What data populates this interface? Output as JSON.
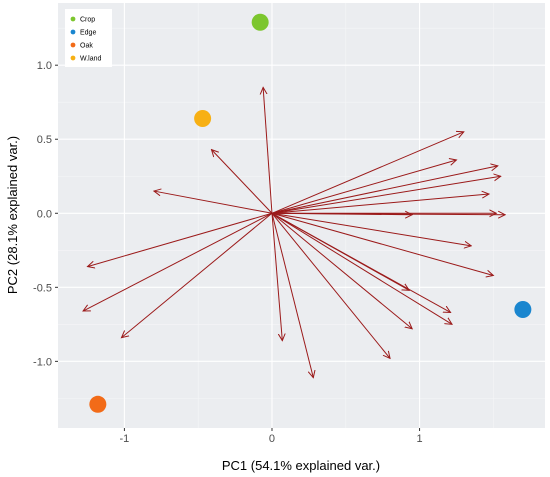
{
  "chart_data": {
    "type": "scatter",
    "subtype": "pca-biplot",
    "title": "",
    "xlabel": "PC1 (54.1% explained var.)",
    "ylabel": "PC2 (28.1% explained var.)",
    "xlim": [
      -1.45,
      1.85
    ],
    "ylim": [
      -1.45,
      1.42
    ],
    "x_ticks": [
      -1,
      0,
      1
    ],
    "x_tick_labels": [
      "-1",
      "0",
      "1"
    ],
    "y_ticks": [
      -1.0,
      -0.5,
      0.0,
      0.5,
      1.0
    ],
    "y_tick_labels": [
      "-1.0",
      "-0.5",
      "0.0",
      "0.5",
      "1.0"
    ],
    "grid": true,
    "legend_position": "top-left",
    "series": [
      {
        "name": "Crop",
        "color": "#7cc62e",
        "x": -0.08,
        "y": 1.29
      },
      {
        "name": "Edge",
        "color": "#1a86cf",
        "x": 1.7,
        "y": -0.65
      },
      {
        "name": "Oak",
        "color": "#f26b18",
        "x": -1.18,
        "y": -1.29
      },
      {
        "name": "W.land",
        "color": "#f7b014",
        "x": -0.47,
        "y": 0.64
      }
    ],
    "arrow_color": "#9b1a1a",
    "arrows": [
      {
        "x": -0.06,
        "y": 0.85
      },
      {
        "x": -0.41,
        "y": 0.43
      },
      {
        "x": -0.8,
        "y": 0.15
      },
      {
        "x": -1.25,
        "y": -0.36
      },
      {
        "x": -1.28,
        "y": -0.66
      },
      {
        "x": -1.02,
        "y": -0.84
      },
      {
        "x": 0.07,
        "y": -0.86
      },
      {
        "x": 0.28,
        "y": -1.11
      },
      {
        "x": 0.8,
        "y": -0.98
      },
      {
        "x": 0.95,
        "y": -0.78
      },
      {
        "x": 1.22,
        "y": -0.75
      },
      {
        "x": 1.21,
        "y": -0.67
      },
      {
        "x": 0.93,
        "y": -0.52
      },
      {
        "x": 1.5,
        "y": -0.42
      },
      {
        "x": 1.35,
        "y": -0.22
      },
      {
        "x": 0.95,
        "y": -0.01
      },
      {
        "x": 1.52,
        "y": 0.0
      },
      {
        "x": 1.58,
        "y": -0.01
      },
      {
        "x": 1.47,
        "y": 0.13
      },
      {
        "x": 1.55,
        "y": 0.25
      },
      {
        "x": 1.53,
        "y": 0.32
      },
      {
        "x": 1.25,
        "y": 0.36
      },
      {
        "x": 1.3,
        "y": 0.55
      }
    ]
  }
}
